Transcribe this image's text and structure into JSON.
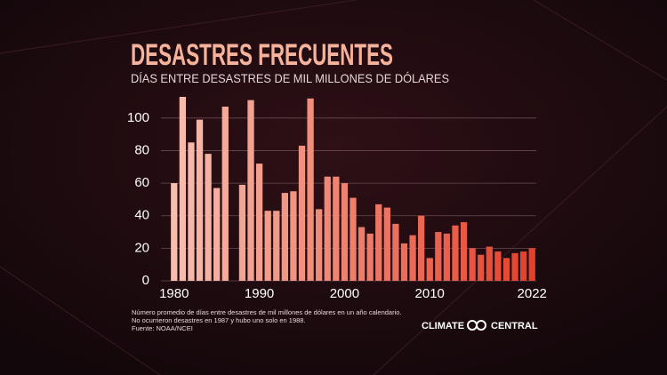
{
  "chart_data": {
    "type": "bar",
    "title": "DESASTRES FRECUENTES",
    "subtitle": "DÍAS ENTRE DESASTRES DE MIL MILLONES DE DÓLARES",
    "notes": [
      "Número promedio de días entre desastres de mil millones de dólares en un año calendario.",
      "No ocurrieron desastres en 1987 y hubo uno solo en 1988.",
      "Fuente: NOAA/NCEI"
    ],
    "logo": [
      "CLIMATE",
      "CENTRAL"
    ],
    "x": [
      1980,
      1981,
      1982,
      1983,
      1984,
      1985,
      1986,
      1987,
      1988,
      1989,
      1990,
      1991,
      1992,
      1993,
      1994,
      1995,
      1996,
      1997,
      1998,
      1999,
      2000,
      2001,
      2002,
      2003,
      2004,
      2005,
      2006,
      2007,
      2008,
      2009,
      2010,
      2011,
      2012,
      2013,
      2014,
      2015,
      2016,
      2017,
      2018,
      2019,
      2020,
      2021,
      2022
    ],
    "values": [
      60,
      113,
      85,
      99,
      78,
      57,
      107,
      null,
      59,
      111,
      72,
      43,
      43,
      54,
      55,
      83,
      112,
      44,
      64,
      64,
      60,
      51,
      33,
      29,
      47,
      45,
      35,
      23,
      28,
      40,
      14,
      30,
      29,
      34,
      36,
      20,
      16,
      21,
      18,
      14,
      17,
      18,
      20
    ],
    "colors": [
      "#f7bdae",
      "#e4412c"
    ],
    "xlim": [
      1979.5,
      2022.5
    ],
    "xticks": [
      1980,
      1990,
      2000,
      2010,
      2022
    ],
    "ylim": [
      0,
      113
    ],
    "yticks": [
      0,
      20,
      40,
      60,
      80,
      100
    ],
    "grid": true
  }
}
